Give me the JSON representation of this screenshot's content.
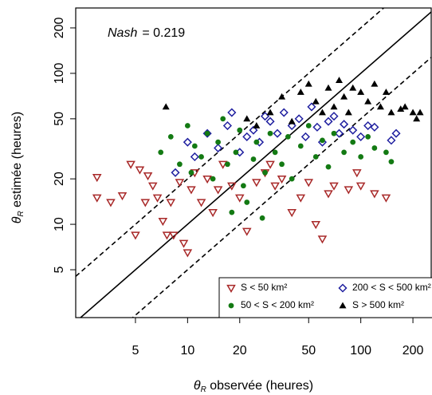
{
  "chart_data": {
    "type": "scatter",
    "annotation": {
      "label": "Nash",
      "text": "= 0.219"
    },
    "xlabel": {
      "symbol": "θ",
      "subscript": "R",
      "text": " observée (heures)"
    },
    "ylabel": {
      "symbol": "θ",
      "subscript": "R",
      "text": " estimée (heures)"
    },
    "xlog": true,
    "ylog": true,
    "xlim": [
      2.26,
      255
    ],
    "ylim": [
      2.41,
      271
    ],
    "xticks": [
      5,
      10,
      20,
      50,
      100,
      200
    ],
    "yticks": [
      5,
      10,
      20,
      50,
      100,
      200
    ],
    "reference_lines": [
      {
        "factor": 1,
        "style": "solid"
      },
      {
        "factor": 2,
        "style": "dashed"
      },
      {
        "factor": 0.5,
        "style": "dashed"
      }
    ],
    "legend": "bottom-right",
    "series": [
      {
        "name": "S < 50 km²",
        "color": "#a82828",
        "marker": "triangle-down",
        "x": [
          3,
          3,
          3.6,
          4.2,
          4.7,
          5,
          5.3,
          5.7,
          5.9,
          6.3,
          6.7,
          7.2,
          7.6,
          8,
          8.3,
          9,
          9.5,
          10,
          10.5,
          11,
          12,
          13,
          14,
          15,
          16,
          18,
          20,
          22,
          25,
          28,
          30,
          32,
          35,
          40,
          45,
          50,
          55,
          60,
          65,
          70,
          85,
          95,
          100,
          120,
          140
        ],
        "values": [
          20.5,
          15,
          14,
          15.5,
          25,
          8.5,
          23,
          14,
          21,
          18,
          15,
          10.5,
          8.5,
          14,
          8.5,
          19,
          7.5,
          6.5,
          17,
          22,
          14,
          20,
          12,
          17,
          25,
          18,
          15,
          9,
          19,
          22,
          25,
          18,
          20,
          12,
          15,
          19,
          10,
          8,
          16,
          18,
          17,
          22,
          18,
          16,
          15
        ]
      },
      {
        "name": "200 < S < 500 km²",
        "color": "#2020a0",
        "marker": "diamond",
        "x": [
          8.5,
          10,
          11,
          13,
          15,
          17,
          18,
          20,
          22,
          24,
          26,
          28,
          30,
          33,
          36,
          40,
          44,
          48,
          52,
          56,
          60,
          65,
          70,
          75,
          80,
          90,
          100,
          110,
          120,
          150,
          160
        ],
        "values": [
          22,
          35,
          28,
          40,
          32,
          45,
          55,
          30,
          38,
          42,
          35,
          52,
          48,
          40,
          55,
          45,
          50,
          38,
          60,
          44,
          35,
          48,
          52,
          40,
          46,
          42,
          38,
          45,
          44,
          36,
          40
        ]
      },
      {
        "name": "50 < S < 200 km²",
        "color": "#137a13",
        "marker": "circle",
        "x": [
          7,
          8,
          9,
          10,
          10.5,
          11,
          12,
          13,
          14,
          15,
          16,
          17,
          18,
          19,
          20,
          21,
          22,
          24,
          25,
          27,
          28,
          30,
          32,
          35,
          38,
          40,
          45,
          50,
          55,
          60,
          65,
          70,
          80,
          90,
          100,
          110,
          120,
          140,
          150
        ],
        "values": [
          30,
          38,
          25,
          45,
          22,
          33,
          28,
          40,
          20,
          35,
          50,
          25,
          12,
          30,
          42,
          18,
          14,
          27,
          35,
          11,
          22,
          40,
          30,
          25,
          38,
          20,
          33,
          45,
          28,
          36,
          24,
          40,
          30,
          35,
          28,
          38,
          32,
          30,
          26
        ]
      },
      {
        "name": "S > 500 km²",
        "color": "#000000",
        "marker": "triangle",
        "x": [
          7.5,
          22,
          25,
          30,
          35,
          40,
          45,
          50,
          55,
          60,
          65,
          70,
          75,
          80,
          85,
          90,
          100,
          110,
          120,
          130,
          140,
          150,
          170,
          180,
          200,
          210,
          220
        ],
        "values": [
          60,
          50,
          45,
          55,
          70,
          48,
          75,
          85,
          65,
          55,
          80,
          60,
          90,
          70,
          55,
          80,
          75,
          65,
          85,
          60,
          75,
          55,
          58,
          60,
          55,
          50,
          55
        ]
      }
    ]
  }
}
